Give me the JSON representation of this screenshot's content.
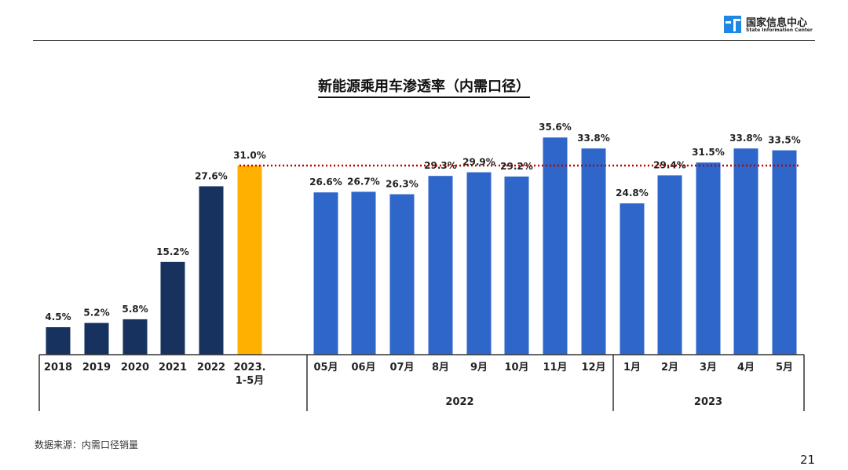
{
  "header": {
    "logo_cn": "国家信息中心",
    "logo_en": "State Information Center"
  },
  "chart_data": {
    "type": "bar",
    "title": "新能源乘用车渗透率（内需口径）",
    "ylim": [
      0,
      40
    ],
    "grid": false,
    "reference_line": {
      "value": 31.0,
      "color": "#C00000",
      "style": "dotted"
    },
    "categories": [
      "2018",
      "2019",
      "2020",
      "2021",
      "2022",
      "2023.\n1-5月",
      "05月",
      "06月",
      "07月",
      "8月",
      "9月",
      "10月",
      "11月",
      "12月",
      "1月",
      "2月",
      "3月",
      "4月",
      "5月"
    ],
    "values": [
      4.5,
      5.2,
      5.8,
      15.2,
      27.6,
      31.0,
      26.6,
      26.7,
      26.3,
      29.3,
      29.9,
      29.2,
      35.6,
      33.8,
      24.8,
      29.4,
      31.5,
      33.8,
      33.5
    ],
    "data_labels": [
      "4.5%",
      "5.2%",
      "5.8%",
      "15.2%",
      "27.6%",
      "31.0%",
      "26.6%",
      "26.7%",
      "26.3%",
      "29.3%",
      "29.9%",
      "29.2%",
      "35.6%",
      "33.8%",
      "24.8%",
      "29.4%",
      "31.5%",
      "33.8%",
      "33.5%"
    ],
    "groups": [
      {
        "label": "",
        "start": 0,
        "end": 5
      },
      {
        "label": "2022",
        "start": 6,
        "end": 13
      },
      {
        "label": "2023",
        "start": 14,
        "end": 18
      }
    ],
    "colors": {
      "annual": "#17325F",
      "ytd": "#FFB000",
      "monthly": "#2E66C9"
    },
    "color_keys": [
      "annual",
      "annual",
      "annual",
      "annual",
      "annual",
      "ytd",
      "monthly",
      "monthly",
      "monthly",
      "monthly",
      "monthly",
      "monthly",
      "monthly",
      "monthly",
      "monthly",
      "monthly",
      "monthly",
      "monthly",
      "monthly"
    ]
  },
  "footer": {
    "source": "数据来源：内需口径销量",
    "page": "21"
  }
}
